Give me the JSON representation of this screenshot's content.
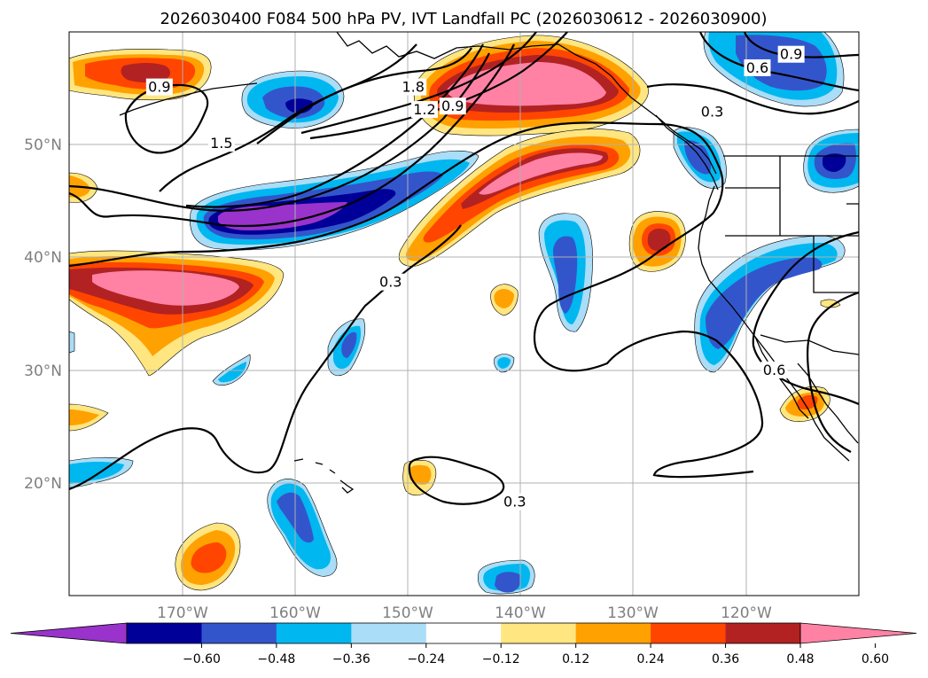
{
  "title": "2026030400 F084 500 hPa PV, IVT Landfall PC (2026030612 - 2026030900)",
  "chart_data": {
    "type": "contour-map",
    "title": "2026030400 F084 500 hPa PV, IVT Landfall PC (2026030612 - 2026030900)",
    "projection": "PlateCarree",
    "lon_range": [
      -180,
      -110
    ],
    "lat_range": [
      10,
      60
    ],
    "lon_ticks": [
      {
        "value": -170,
        "label": "170°W"
      },
      {
        "value": -160,
        "label": "160°W"
      },
      {
        "value": -150,
        "label": "150°W"
      },
      {
        "value": -140,
        "label": "140°W"
      },
      {
        "value": -130,
        "label": "130°W"
      },
      {
        "value": -120,
        "label": "120°W"
      }
    ],
    "lat_ticks": [
      {
        "value": 20,
        "label": "20°N"
      },
      {
        "value": 30,
        "label": "30°N"
      },
      {
        "value": 40,
        "label": "40°N"
      },
      {
        "value": 50,
        "label": "50°N"
      }
    ],
    "colorbar": {
      "levels": [
        -0.72,
        -0.6,
        -0.48,
        -0.36,
        -0.24,
        -0.12,
        0.12,
        0.24,
        0.36,
        0.48,
        0.6,
        0.72
      ],
      "tick_values": [
        -0.6,
        -0.48,
        -0.36,
        -0.24,
        -0.12,
        0.12,
        0.24,
        0.36,
        0.48,
        0.6
      ],
      "tick_labels": [
        "−0.60",
        "−0.48",
        "−0.36",
        "−0.24",
        "−0.12",
        "0.12",
        "0.24",
        "0.36",
        "0.48",
        "0.60"
      ],
      "colors": [
        "#9933cc",
        "#000099",
        "#3355cc",
        "#00b7f0",
        "#aaddf7",
        "#ffffff",
        "#ffe680",
        "#ffa100",
        "#ff4500",
        "#b22222",
        "#ff82a5"
      ],
      "extend": "both"
    },
    "pv_contour_labels": [
      {
        "text": "0.9",
        "lon": -172.0,
        "lat": 55.0
      },
      {
        "text": "1.5",
        "lon": -166.5,
        "lat": 50.0
      },
      {
        "text": "1.8",
        "lon": -149.5,
        "lat": 55.0
      },
      {
        "text": "1.2",
        "lon": -148.5,
        "lat": 53.0
      },
      {
        "text": "0.9",
        "lon": -146.0,
        "lat": 53.3
      },
      {
        "text": "0.3",
        "lon": -151.5,
        "lat": 37.7
      },
      {
        "text": "0.9",
        "lon": -116.0,
        "lat": 57.9
      },
      {
        "text": "0.6",
        "lon": -119.0,
        "lat": 56.7
      },
      {
        "text": "0.3",
        "lon": -123.0,
        "lat": 52.8
      },
      {
        "text": "0.6",
        "lon": -117.5,
        "lat": 29.9
      },
      {
        "text": "0.3",
        "lon": -140.5,
        "lat": 18.2
      }
    ]
  }
}
